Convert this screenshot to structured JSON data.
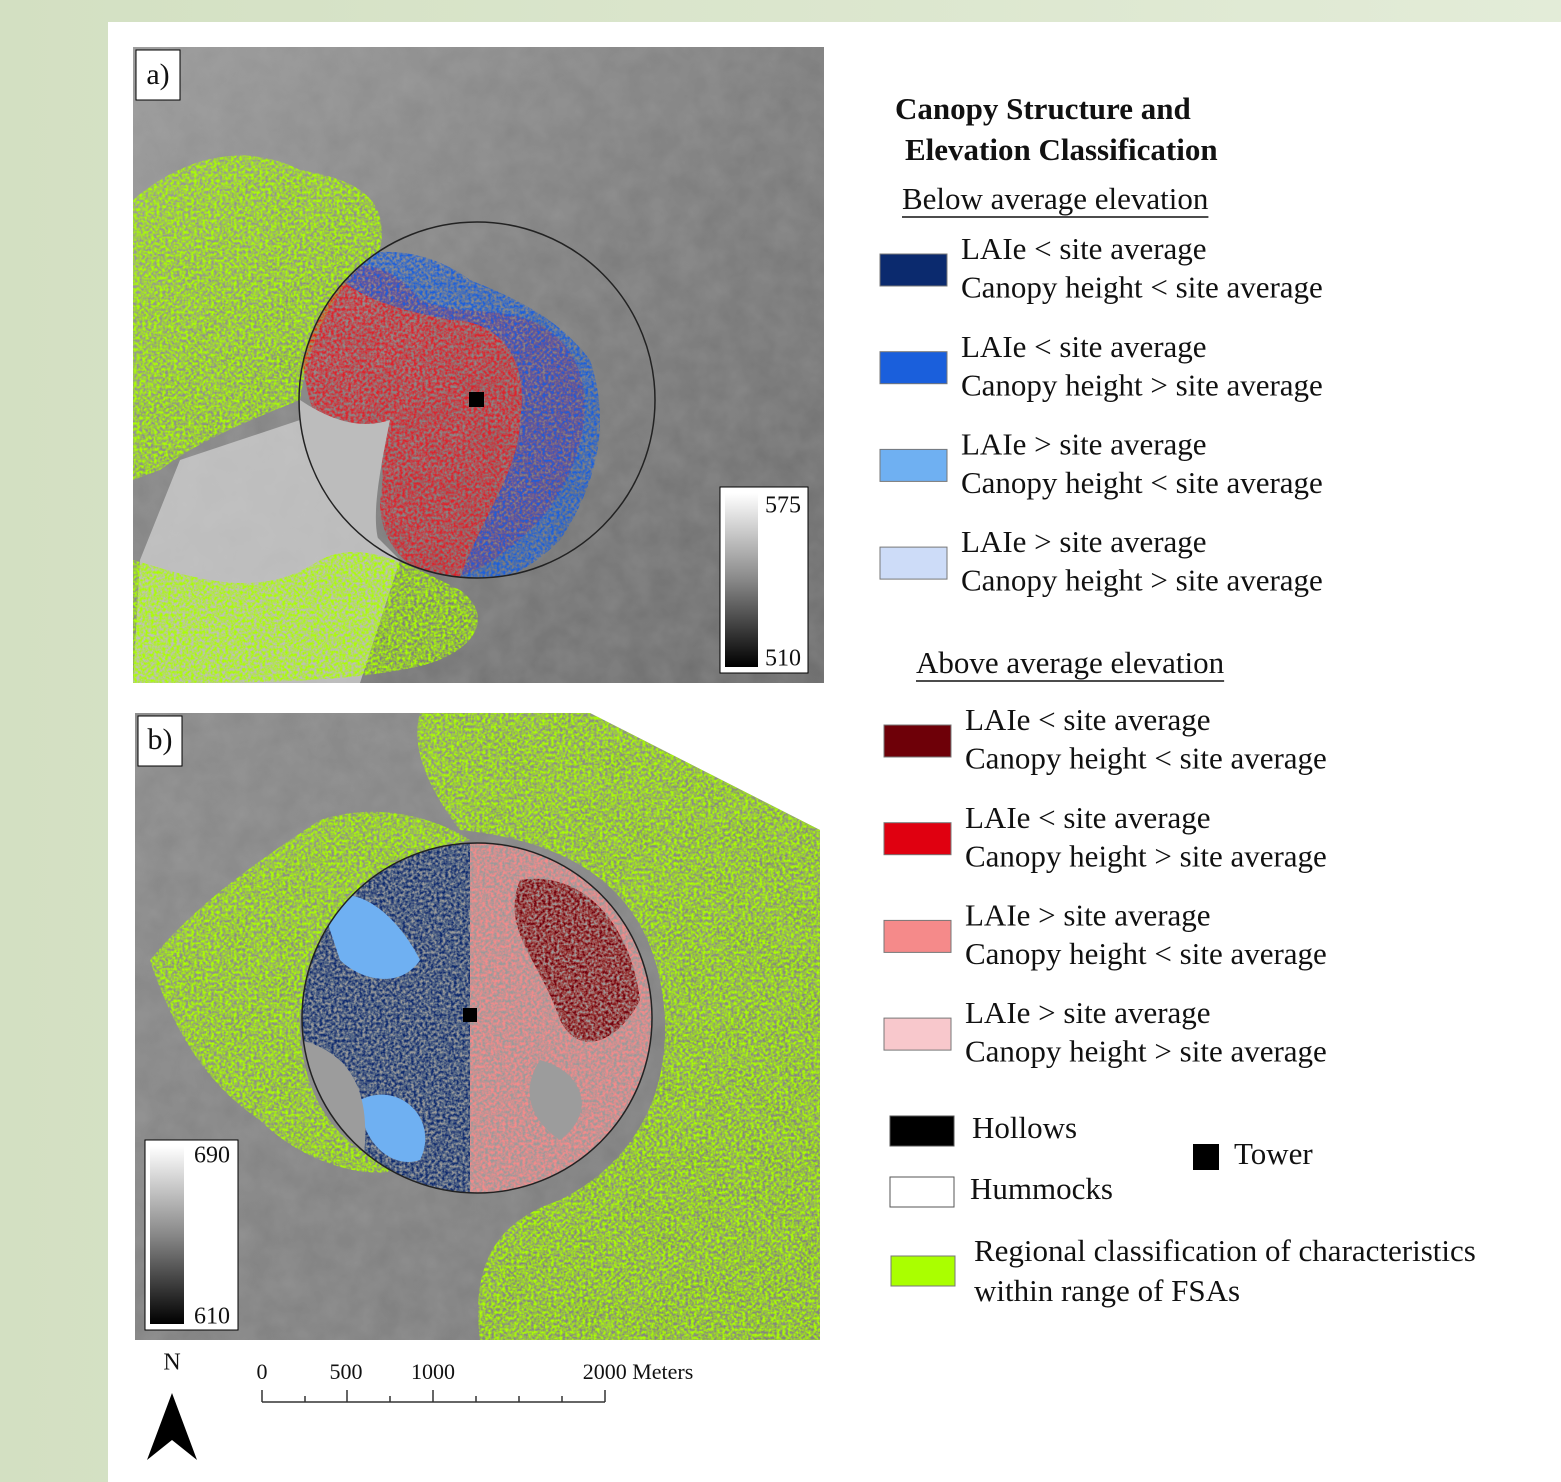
{
  "map_a": {
    "label": "a)",
    "elevation_scale": {
      "max": "575",
      "min": "510"
    }
  },
  "map_b": {
    "label": "b)",
    "elevation_scale": {
      "max": "690",
      "min": "610"
    }
  },
  "legend": {
    "title": [
      "Canopy Structure and",
      "Elevation Classification"
    ],
    "groups": [
      {
        "heading": "Below average elevation",
        "items": [
          {
            "color": "#0b2a6e",
            "lines": [
              "LAIe < site average",
              "Canopy height < site average"
            ]
          },
          {
            "color": "#1a5fdc",
            "lines": [
              "LAIe < site average",
              "Canopy height > site average"
            ]
          },
          {
            "color": "#6fb0f2",
            "lines": [
              "LAIe > site average",
              "Canopy height < site average"
            ]
          },
          {
            "color": "#cddcf8",
            "lines": [
              "LAIe > site average",
              "Canopy height > site average"
            ]
          }
        ]
      },
      {
        "heading": "Above average elevation",
        "items": [
          {
            "color": "#6e0008",
            "lines": [
              "LAIe < site average",
              "Canopy height < site average"
            ]
          },
          {
            "color": "#e00010",
            "lines": [
              "LAIe < site average",
              "Canopy height > site average"
            ]
          },
          {
            "color": "#f58a8a",
            "lines": [
              "LAIe > site average",
              "Canopy height < site average"
            ]
          },
          {
            "color": "#f8c8cc",
            "lines": [
              "LAIe > site average",
              "Canopy height > site average"
            ]
          }
        ]
      }
    ],
    "hollows": {
      "color": "#000000",
      "label": "Hollows"
    },
    "hummocks": {
      "color": "#ffffff",
      "label": "Hummocks"
    },
    "tower": {
      "label": "Tower"
    },
    "regional": {
      "color": "#aaff00",
      "lines": [
        "Regional classification of characteristics",
        "within range of FSAs"
      ]
    }
  },
  "north": "N",
  "scale_bar": {
    "labels": [
      "0",
      "500",
      "1000",
      "2000 Meters"
    ]
  }
}
